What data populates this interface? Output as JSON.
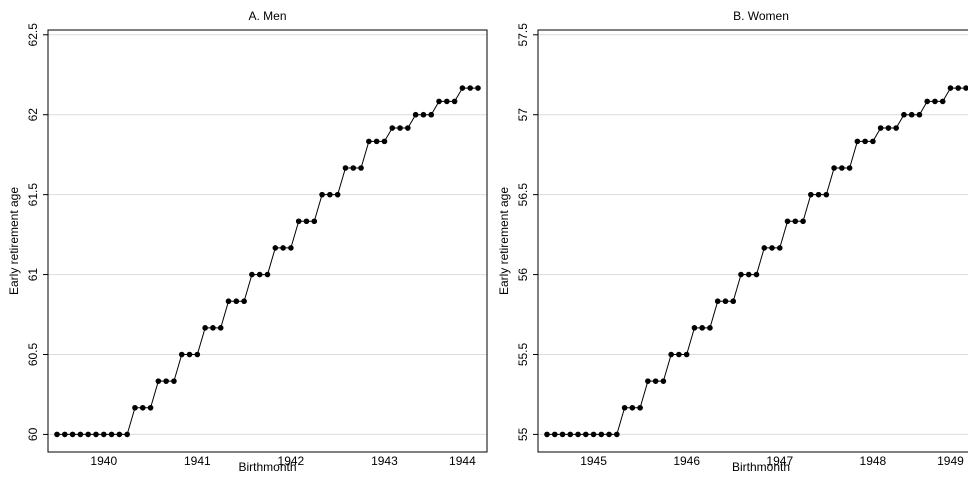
{
  "chart_data": [
    {
      "type": "line",
      "title": "A. Men",
      "x_label": "Birthmonth",
      "y_label": "Early retirement age",
      "categories": [
        null,
        null,
        null,
        null,
        null,
        null,
        "1940",
        null,
        null,
        null,
        null,
        null,
        null,
        null,
        null,
        null,
        null,
        null,
        "1941",
        null,
        null,
        null,
        null,
        null,
        null,
        null,
        null,
        null,
        null,
        null,
        "1942",
        null,
        null,
        null,
        null,
        null,
        null,
        null,
        null,
        null,
        null,
        null,
        "1943",
        null,
        null,
        null,
        null,
        null,
        null,
        null,
        null,
        null,
        "1944",
        null,
        null
      ],
      "series": [
        {
          "color": "#000000",
          "values": [
            60,
            60,
            60,
            60,
            60,
            60,
            60,
            60,
            60,
            60,
            60.1667,
            60.1667,
            60.1667,
            60.3333,
            60.3333,
            60.3333,
            60.5,
            60.5,
            60.5,
            60.6667,
            60.6667,
            60.6667,
            60.8333,
            60.8333,
            60.8333,
            61,
            61,
            61,
            61.1667,
            61.1667,
            61.1667,
            61.3333,
            61.3333,
            61.3333,
            61.5,
            61.5,
            61.5,
            61.6667,
            61.6667,
            61.6667,
            61.8333,
            61.8333,
            61.8333,
            61.9167,
            61.9167,
            61.9167,
            62,
            62,
            62,
            62.0833,
            62.0833,
            62.0833,
            62.1667,
            62.1667,
            62.1667
          ]
        }
      ],
      "ylim": [
        59.89,
        62.53
      ],
      "yticks": [
        60,
        60.5,
        61,
        61.5,
        62,
        62.5
      ],
      "grid": true
    },
    {
      "type": "line",
      "title": "B. Women",
      "x_label": "Birthmonth",
      "y_label": "Early retirement age",
      "categories": [
        null,
        null,
        null,
        null,
        null,
        null,
        "1945",
        null,
        null,
        null,
        null,
        null,
        null,
        null,
        null,
        null,
        null,
        null,
        "1946",
        null,
        null,
        null,
        null,
        null,
        null,
        null,
        null,
        null,
        null,
        null,
        "1947",
        null,
        null,
        null,
        null,
        null,
        null,
        null,
        null,
        null,
        null,
        null,
        "1948",
        null,
        null,
        null,
        null,
        null,
        null,
        null,
        null,
        null,
        "1949",
        null,
        null
      ],
      "series": [
        {
          "color": "#000000",
          "values": [
            55,
            55,
            55,
            55,
            55,
            55,
            55,
            55,
            55,
            55,
            55.1667,
            55.1667,
            55.1667,
            55.3333,
            55.3333,
            55.3333,
            55.5,
            55.5,
            55.5,
            55.6667,
            55.6667,
            55.6667,
            55.8333,
            55.8333,
            55.8333,
            56,
            56,
            56,
            56.1667,
            56.1667,
            56.1667,
            56.3333,
            56.3333,
            56.3333,
            56.5,
            56.5,
            56.5,
            56.6667,
            56.6667,
            56.6667,
            56.8333,
            56.8333,
            56.8333,
            56.9167,
            56.9167,
            56.9167,
            57,
            57,
            57,
            57.0833,
            57.0833,
            57.0833,
            57.1667,
            57.1667,
            57.1667
          ]
        }
      ],
      "ylim": [
        54.89,
        57.53
      ],
      "yticks": [
        55,
        55.5,
        56,
        56.5,
        57,
        57.5
      ],
      "grid": true
    }
  ]
}
